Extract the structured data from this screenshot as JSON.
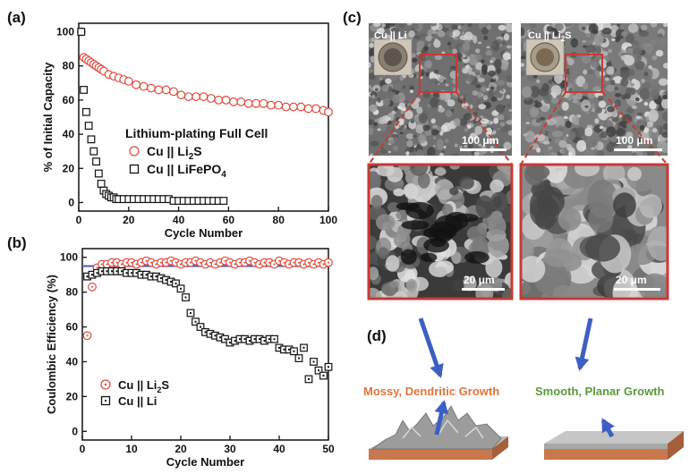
{
  "colors": {
    "red": "#e0483a",
    "black": "#111111",
    "blue": "#3d5fc4",
    "orange": "#e2743a",
    "green": "#5a9a3a",
    "copper": "#c9784e",
    "box": "#c83a34"
  },
  "labels": {
    "a": "(a)",
    "b": "(b)",
    "c": "(c)",
    "d": "(d)"
  },
  "chart_data": [
    {
      "type": "scatter",
      "panel": "(a)",
      "xlabel": "Cycle Number",
      "ylabel": "% of Initial Capacity",
      "xlim": [
        0,
        100
      ],
      "ylim": [
        -5,
        105
      ],
      "xticks": [
        0,
        20,
        40,
        60,
        80,
        100
      ],
      "yticks": [
        0,
        20,
        40,
        60,
        80,
        100
      ],
      "legend_title": "Lithium-plating Full Cell",
      "legend_position": "center-right",
      "series": [
        {
          "name": "Cu || Li2S",
          "display": [
            "Cu || Li",
            "2",
            "S"
          ],
          "marker": "circle",
          "color": "#e0483a",
          "x": [
            1,
            2,
            3,
            4,
            5,
            6,
            7,
            8,
            9,
            10,
            12,
            14,
            16,
            18,
            20,
            23,
            26,
            29,
            32,
            35,
            38,
            41,
            44,
            47,
            50,
            53,
            56,
            59,
            62,
            65,
            68,
            71,
            74,
            77,
            80,
            83,
            86,
            89,
            92,
            95,
            98,
            100
          ],
          "y": [
            100,
            85,
            84,
            83,
            82,
            81,
            80,
            79,
            78,
            77,
            75,
            74,
            73,
            72,
            71,
            69,
            68,
            67,
            66,
            66,
            65,
            63,
            62,
            62,
            62,
            61,
            60,
            60,
            59,
            59,
            58,
            58,
            58,
            57,
            57,
            56,
            56,
            56,
            55,
            55,
            54,
            53
          ]
        },
        {
          "name": "Cu || LiFePO4",
          "display": [
            "Cu || LiFePO",
            "4",
            ""
          ],
          "marker": "square",
          "color": "#111111",
          "x": [
            1,
            2,
            3,
            4,
            5,
            6,
            7,
            8,
            9,
            10,
            11,
            12,
            13,
            14,
            15,
            16,
            18,
            20,
            22,
            24,
            26,
            28,
            30,
            32,
            34,
            36,
            38,
            40,
            42,
            44,
            46,
            48,
            50,
            52,
            54,
            56,
            58
          ],
          "y": [
            100,
            66,
            53,
            45,
            37,
            30,
            24,
            17,
            11,
            7,
            5,
            4,
            3,
            3,
            2,
            2,
            2,
            2,
            2,
            2,
            2,
            2,
            2,
            2,
            2,
            2,
            1,
            1,
            1,
            1,
            1,
            1,
            1,
            1,
            1,
            1,
            1
          ]
        }
      ]
    },
    {
      "type": "scatter",
      "panel": "(b)",
      "xlabel": "Cycle Number",
      "ylabel": "Coulombic Efficiency (%)",
      "xlim": [
        0,
        50
      ],
      "ylim": [
        -5,
        105
      ],
      "xticks": [
        0,
        10,
        20,
        30,
        40,
        50
      ],
      "yticks": [
        0,
        20,
        40,
        60,
        80,
        100
      ],
      "reference_line": 95,
      "legend_position": "lower-left",
      "series": [
        {
          "name": "Cu || Li2S",
          "display": [
            "Cu || Li",
            "2",
            "S"
          ],
          "marker": "circle-dot",
          "color": "#e0483a",
          "x": [
            1,
            2,
            3,
            4,
            5,
            6,
            7,
            8,
            9,
            10,
            11,
            12,
            13,
            14,
            15,
            16,
            17,
            18,
            19,
            20,
            21,
            22,
            23,
            24,
            25,
            26,
            27,
            28,
            29,
            30,
            31,
            32,
            33,
            34,
            35,
            36,
            37,
            38,
            39,
            40,
            41,
            42,
            43,
            44,
            45,
            46,
            47,
            48,
            49,
            50
          ],
          "y": [
            55,
            83,
            94,
            96,
            96,
            97,
            97,
            96,
            97,
            97,
            96,
            97,
            98,
            97,
            96,
            97,
            97,
            98,
            97,
            96,
            97,
            97,
            98,
            97,
            96,
            97,
            96,
            97,
            98,
            97,
            96,
            97,
            97,
            98,
            97,
            96,
            97,
            97,
            96,
            98,
            97,
            96,
            97,
            97,
            96,
            97,
            96,
            97,
            96,
            97
          ]
        },
        {
          "name": "Cu || Li",
          "display": [
            "Cu || Li",
            "",
            ""
          ],
          "marker": "square-dot",
          "color": "#111111",
          "x": [
            1,
            2,
            3,
            4,
            5,
            6,
            7,
            8,
            9,
            10,
            11,
            12,
            13,
            14,
            15,
            16,
            17,
            18,
            19,
            20,
            21,
            22,
            23,
            24,
            25,
            26,
            27,
            28,
            29,
            30,
            31,
            32,
            33,
            34,
            35,
            36,
            37,
            38,
            39,
            40,
            41,
            42,
            43,
            44,
            45,
            46,
            47,
            48,
            49,
            50
          ],
          "y": [
            89,
            90,
            91,
            92,
            92,
            92,
            92,
            92,
            91,
            91,
            91,
            90,
            90,
            89,
            89,
            88,
            87,
            86,
            85,
            82,
            77,
            68,
            63,
            60,
            57,
            56,
            55,
            54,
            53,
            51,
            52,
            53,
            53,
            52,
            53,
            53,
            52,
            53,
            53,
            48,
            47,
            47,
            46,
            42,
            48,
            30,
            40,
            35,
            32,
            37
          ]
        }
      ]
    }
  ],
  "panel_c": {
    "sem_left_title": "Cu || Li",
    "sem_right_title": [
      "Cu || Li",
      "2",
      "S"
    ],
    "scale_100": "100 μm",
    "scale_20": "20 μm"
  },
  "panel_d": {
    "left_caption": "Mossy, Dendritic Growth",
    "right_caption": "Smooth, Planar Growth"
  }
}
